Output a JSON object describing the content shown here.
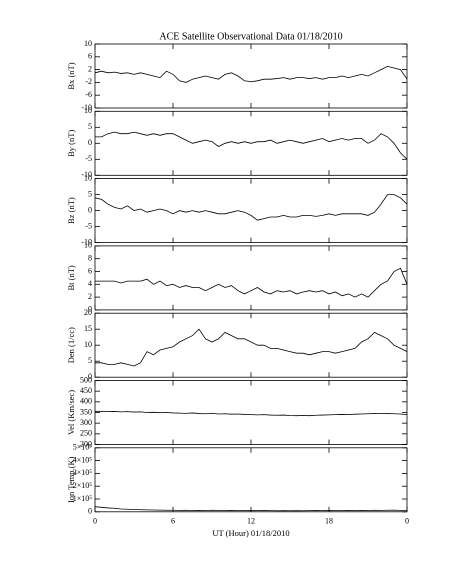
{
  "chart_data": [
    {
      "type": "line",
      "title": "ACE Satellite Observational Data   01/18/2010",
      "ylabel": "Bx (nT)",
      "x": [
        0,
        0.5,
        1,
        1.5,
        2,
        2.5,
        3,
        3.5,
        4,
        4.5,
        5,
        5.5,
        6,
        6.5,
        7,
        7.5,
        8,
        8.5,
        9,
        9.5,
        10,
        10.5,
        11,
        11.5,
        12,
        12.5,
        13,
        13.5,
        14,
        14.5,
        15,
        15.5,
        16,
        16.5,
        17,
        17.5,
        18,
        18.5,
        19,
        19.5,
        20,
        20.5,
        21,
        21.5,
        22,
        22.5,
        23,
        23.5,
        24
      ],
      "values": [
        1,
        1.5,
        1,
        1.2,
        0.8,
        1,
        0.5,
        1,
        0.5,
        0,
        -0.5,
        1.5,
        0.5,
        -1.5,
        -2,
        -1,
        -0.5,
        0,
        -0.5,
        -1,
        0.5,
        1,
        0,
        -1.5,
        -1.8,
        -1.5,
        -1,
        -1,
        -0.8,
        -0.5,
        -1,
        -0.5,
        -0.5,
        -0.8,
        -0.5,
        -1,
        -0.5,
        -0.5,
        0,
        -0.5,
        0,
        0.5,
        0,
        1,
        2,
        3,
        2.5,
        2,
        -1
      ],
      "color": "#000000",
      "xlim": [
        0,
        24
      ],
      "xticks": [
        0,
        6,
        12,
        18,
        24
      ],
      "ylim": [
        -10,
        10
      ],
      "yticks": [
        -10,
        -6,
        -2,
        2,
        6,
        10
      ]
    },
    {
      "type": "line",
      "ylabel": "By (nT)",
      "x": [
        0,
        0.5,
        1,
        1.5,
        2,
        2.5,
        3,
        3.5,
        4,
        4.5,
        5,
        5.5,
        6,
        6.5,
        7,
        7.5,
        8,
        8.5,
        9,
        9.5,
        10,
        10.5,
        11,
        11.5,
        12,
        12.5,
        13,
        13.5,
        14,
        14.5,
        15,
        15.5,
        16,
        16.5,
        17,
        17.5,
        18,
        18.5,
        19,
        19.5,
        20,
        20.5,
        21,
        21.5,
        22,
        22.5,
        23,
        23.5,
        24
      ],
      "values": [
        2,
        2,
        3,
        3.5,
        3,
        3,
        3.5,
        3,
        2.5,
        3,
        2.5,
        3,
        3,
        2,
        1,
        0,
        0.5,
        1,
        0.5,
        -1,
        0,
        0.5,
        0,
        0.5,
        0,
        0.5,
        0.5,
        1,
        0,
        0.5,
        1,
        0.5,
        0,
        0.5,
        1,
        1.5,
        0.5,
        1,
        1.5,
        1,
        1.5,
        1.5,
        0,
        1,
        3,
        2,
        0,
        -3,
        -5
      ],
      "color": "#000000",
      "xlim": [
        0,
        24
      ],
      "xticks": [
        0,
        6,
        12,
        18,
        24
      ],
      "ylim": [
        -10,
        10
      ],
      "yticks": [
        -10,
        -5,
        0,
        5,
        10
      ]
    },
    {
      "type": "line",
      "ylabel": "Bz (nT)",
      "x": [
        0,
        0.5,
        1,
        1.5,
        2,
        2.5,
        3,
        3.5,
        4,
        4.5,
        5,
        5.5,
        6,
        6.5,
        7,
        7.5,
        8,
        8.5,
        9,
        9.5,
        10,
        10.5,
        11,
        11.5,
        12,
        12.5,
        13,
        13.5,
        14,
        14.5,
        15,
        15.5,
        16,
        16.5,
        17,
        17.5,
        18,
        18.5,
        19,
        19.5,
        20,
        20.5,
        21,
        21.5,
        22,
        22.5,
        23,
        23.5,
        24
      ],
      "values": [
        4,
        3.5,
        2,
        1,
        0.5,
        1.5,
        0,
        0.5,
        -0.5,
        0,
        0.5,
        0,
        -1,
        0,
        -0.5,
        0,
        -0.5,
        0,
        -0.5,
        -1,
        -1,
        -0.5,
        0,
        -0.5,
        -1.5,
        -3,
        -2.5,
        -2,
        -2,
        -1.5,
        -2,
        -2,
        -1.5,
        -1.5,
        -1.8,
        -1.5,
        -1,
        -1.5,
        -1,
        -1,
        -1,
        -1,
        -1.5,
        -0.5,
        2,
        5,
        5,
        4,
        2
      ],
      "color": "#000000",
      "xlim": [
        0,
        24
      ],
      "xticks": [
        0,
        6,
        12,
        18,
        24
      ],
      "ylim": [
        -10,
        10
      ],
      "yticks": [
        -10,
        -5,
        0,
        5,
        10
      ]
    },
    {
      "type": "line",
      "ylabel": "Bt (nT)",
      "x": [
        0,
        0.5,
        1,
        1.5,
        2,
        2.5,
        3,
        3.5,
        4,
        4.5,
        5,
        5.5,
        6,
        6.5,
        7,
        7.5,
        8,
        8.5,
        9,
        9.5,
        10,
        10.5,
        11,
        11.5,
        12,
        12.5,
        13,
        13.5,
        14,
        14.5,
        15,
        15.5,
        16,
        16.5,
        17,
        17.5,
        18,
        18.5,
        19,
        19.5,
        20,
        20.5,
        21,
        21.5,
        22,
        22.5,
        23,
        23.5,
        24
      ],
      "values": [
        4.5,
        4.5,
        4.5,
        4.5,
        4.2,
        4.5,
        4.5,
        4.5,
        4.8,
        4,
        4.5,
        3.8,
        4,
        3.5,
        3.8,
        3.5,
        3.5,
        3,
        3.5,
        4,
        3.5,
        3.8,
        3,
        2.5,
        3,
        3.5,
        2.8,
        2.5,
        3,
        2.8,
        3,
        2.5,
        2.8,
        3,
        2.8,
        3,
        2.5,
        2.8,
        2.2,
        2.5,
        2,
        2.5,
        2,
        3,
        4,
        4.5,
        6,
        6.5,
        4
      ],
      "color": "#000000",
      "xlim": [
        0,
        24
      ],
      "xticks": [
        0,
        6,
        12,
        18,
        24
      ],
      "ylim": [
        0,
        10
      ],
      "yticks": [
        0,
        2,
        4,
        6,
        8,
        10
      ]
    },
    {
      "type": "line",
      "ylabel": "Den (1/cc)",
      "x": [
        0,
        0.5,
        1,
        1.5,
        2,
        2.5,
        3,
        3.5,
        4,
        4.5,
        5,
        5.5,
        6,
        6.5,
        7,
        7.5,
        8,
        8.5,
        9,
        9.5,
        10,
        10.5,
        11,
        11.5,
        12,
        12.5,
        13,
        13.5,
        14,
        14.5,
        15,
        15.5,
        16,
        16.5,
        17,
        17.5,
        18,
        18.5,
        19,
        19.5,
        20,
        20.5,
        21,
        21.5,
        22,
        22.5,
        23,
        23.5,
        24
      ],
      "values": [
        4.5,
        4.5,
        4,
        4,
        4.5,
        4,
        3.5,
        4.5,
        8,
        7,
        8.5,
        9,
        9.5,
        11,
        12,
        13,
        15,
        12,
        11,
        12,
        14,
        13,
        12,
        12,
        11,
        10,
        10,
        9,
        9,
        8.5,
        8,
        7.5,
        7.5,
        7,
        7.5,
        8,
        8,
        7.5,
        8,
        8.5,
        9,
        11,
        12,
        14,
        13,
        12,
        10,
        9,
        8
      ],
      "color": "#000000",
      "xlim": [
        0,
        24
      ],
      "xticks": [
        0,
        6,
        12,
        18,
        24
      ],
      "ylim": [
        0,
        20
      ],
      "yticks": [
        0,
        5,
        10,
        15,
        20
      ]
    },
    {
      "type": "line",
      "ylabel": "Vel (Km/sec)",
      "x": [
        0,
        0.5,
        1,
        1.5,
        2,
        2.5,
        3,
        3.5,
        4,
        4.5,
        5,
        5.5,
        6,
        6.5,
        7,
        7.5,
        8,
        8.5,
        9,
        9.5,
        10,
        10.5,
        11,
        11.5,
        12,
        12.5,
        13,
        13.5,
        14,
        14.5,
        15,
        15.5,
        16,
        16.5,
        17,
        17.5,
        18,
        18.5,
        19,
        19.5,
        20,
        20.5,
        21,
        21.5,
        22,
        22.5,
        23,
        23.5,
        24
      ],
      "values": [
        355,
        356,
        354,
        355,
        353,
        354,
        352,
        353,
        350,
        351,
        349,
        350,
        348,
        347,
        346,
        348,
        345,
        344,
        346,
        343,
        344,
        342,
        343,
        341,
        340,
        339,
        340,
        338,
        337,
        338,
        336,
        335,
        336,
        335,
        337,
        338,
        339,
        340,
        341,
        340,
        342,
        343,
        344,
        345,
        346,
        345,
        344,
        343,
        340
      ],
      "color": "#000000",
      "xlim": [
        0,
        24
      ],
      "xticks": [
        0,
        6,
        12,
        18,
        24
      ],
      "ylim": [
        200,
        500
      ],
      "yticks": [
        200,
        250,
        300,
        350,
        400,
        450,
        500
      ]
    },
    {
      "type": "line",
      "ylabel": "Ion Temp (K)",
      "xlabel": "UT (Hour)  01/18/2010",
      "x": [
        0,
        0.5,
        1,
        1.5,
        2,
        2.5,
        3,
        3.5,
        4,
        4.5,
        5,
        5.5,
        6,
        6.5,
        7,
        7.5,
        8,
        8.5,
        9,
        9.5,
        10,
        10.5,
        11,
        11.5,
        12,
        12.5,
        13,
        13.5,
        14,
        14.5,
        15,
        15.5,
        16,
        16.5,
        17,
        17.5,
        18,
        18.5,
        19,
        19.5,
        20,
        20.5,
        21,
        21.5,
        22,
        22.5,
        23,
        23.5,
        24
      ],
      "values": [
        40000,
        35000,
        30000,
        28000,
        22000,
        20000,
        18000,
        16000,
        15000,
        14000,
        13000,
        12000,
        12000,
        11000,
        12000,
        10000,
        11000,
        10000,
        12000,
        11000,
        10000,
        11000,
        10000,
        9000,
        10000,
        9000,
        10000,
        9000,
        8000,
        9000,
        8000,
        9000,
        8000,
        9000,
        10000,
        9000,
        10000,
        9000,
        10000,
        11000,
        10000,
        11000,
        10000,
        12000,
        11000,
        12000,
        13000,
        11000,
        10000
      ],
      "color": "#000000",
      "xlim": [
        0,
        24
      ],
      "xticks": [
        0,
        6,
        12,
        18,
        {
          "value": 24,
          "label": "0"
        }
      ],
      "ylim": [
        0,
        500000
      ],
      "yticks": [
        0,
        {
          "value": 100000,
          "label": "1×10⁵"
        },
        {
          "value": 200000,
          "label": "2×10⁵"
        },
        {
          "value": 300000,
          "label": "3×10⁵"
        },
        {
          "value": 400000,
          "label": "4×10⁵"
        },
        {
          "value": 500000,
          "label": "5×10⁵"
        }
      ]
    }
  ]
}
